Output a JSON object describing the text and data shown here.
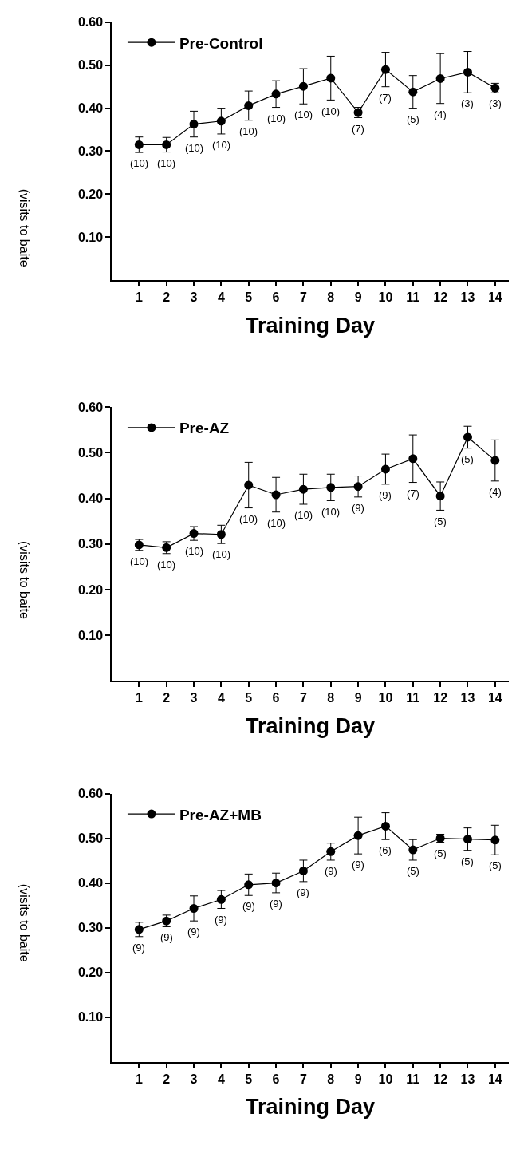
{
  "chart_data": [
    {
      "type": "line",
      "xlabel": "Training Day",
      "ylabel": "(visits to baite",
      "x": [
        1,
        2,
        3,
        4,
        5,
        6,
        7,
        8,
        9,
        10,
        11,
        12,
        13,
        14
      ],
      "series": [
        {
          "name": "Pre-Control",
          "color": "#000000",
          "values": [
            0.315,
            0.315,
            0.363,
            0.37,
            0.406,
            0.433,
            0.451,
            0.47,
            0.39,
            0.49,
            0.438,
            0.469,
            0.484,
            0.447
          ],
          "errors": [
            0.018,
            0.017,
            0.03,
            0.03,
            0.034,
            0.031,
            0.041,
            0.051,
            0.012,
            0.04,
            0.038,
            0.058,
            0.048,
            0.011
          ]
        }
      ],
      "annotations": [
        {
          "text": "(10)",
          "x": 1,
          "y": 0.315
        },
        {
          "text": "(10)",
          "x": 2,
          "y": 0.315
        },
        {
          "text": "(10)",
          "x": 3,
          "y": 0.363
        },
        {
          "text": "(10)",
          "x": 4,
          "y": 0.37
        },
        {
          "text": "(10)",
          "x": 5,
          "y": 0.406
        },
        {
          "text": "(10)",
          "x": 6,
          "y": 0.433
        },
        {
          "text": "(10)",
          "x": 7,
          "y": 0.451
        },
        {
          "text": "(10)",
          "x": 8,
          "y": 0.47
        },
        {
          "text": "(7)",
          "x": 9,
          "y": 0.39
        },
        {
          "text": "(7)",
          "x": 10,
          "y": 0.49
        },
        {
          "text": "(5)",
          "x": 11,
          "y": 0.438
        },
        {
          "text": "(4)",
          "x": 12,
          "y": 0.469
        },
        {
          "text": "(3)",
          "x": 13,
          "y": 0.484
        },
        {
          "text": "(3)",
          "x": 14,
          "y": 0.447
        }
      ],
      "xlim": [
        0,
        14.5
      ],
      "xticks": [
        1,
        2,
        3,
        4,
        5,
        6,
        7,
        8,
        9,
        10,
        11,
        12,
        13,
        14
      ],
      "ylim": [
        0,
        0.6
      ],
      "yticks": [
        {
          "value": 0.1,
          "label": "0.10"
        },
        {
          "value": 0.2,
          "label": "0.20"
        },
        {
          "value": 0.3,
          "label": "0.30"
        },
        {
          "value": 0.4,
          "label": "0.40"
        },
        {
          "value": 0.5,
          "label": "0.50"
        },
        {
          "value": 0.6,
          "label": "0.60"
        }
      ],
      "legend": "top left",
      "marker": "circle",
      "line_style": "solid"
    },
    {
      "type": "line",
      "xlabel": "Training Day",
      "ylabel": "(visits to baite",
      "x": [
        1,
        2,
        3,
        4,
        5,
        6,
        7,
        8,
        9,
        10,
        11,
        12,
        13,
        14
      ],
      "series": [
        {
          "name": "Pre-AZ",
          "color": "#000000",
          "values": [
            0.298,
            0.292,
            0.323,
            0.321,
            0.429,
            0.408,
            0.42,
            0.424,
            0.426,
            0.464,
            0.487,
            0.405,
            0.534,
            0.483
          ],
          "errors": [
            0.012,
            0.013,
            0.015,
            0.02,
            0.05,
            0.038,
            0.033,
            0.029,
            0.023,
            0.033,
            0.052,
            0.031,
            0.024,
            0.045
          ]
        }
      ],
      "annotations": [
        {
          "text": "(10)",
          "x": 1,
          "y": 0.298
        },
        {
          "text": "(10)",
          "x": 2,
          "y": 0.292
        },
        {
          "text": "(10)",
          "x": 3,
          "y": 0.323
        },
        {
          "text": "(10)",
          "x": 4,
          "y": 0.321
        },
        {
          "text": "(10)",
          "x": 5,
          "y": 0.429
        },
        {
          "text": "(10)",
          "x": 6,
          "y": 0.408
        },
        {
          "text": "(10)",
          "x": 7,
          "y": 0.42
        },
        {
          "text": "(10)",
          "x": 8,
          "y": 0.424
        },
        {
          "text": "(9)",
          "x": 9,
          "y": 0.426
        },
        {
          "text": "(9)",
          "x": 10,
          "y": 0.464
        },
        {
          "text": "(7)",
          "x": 11,
          "y": 0.487
        },
        {
          "text": "(5)",
          "x": 12,
          "y": 0.405
        },
        {
          "text": "(5)",
          "x": 13,
          "y": 0.534
        },
        {
          "text": "(4)",
          "x": 14,
          "y": 0.483
        }
      ],
      "xlim": [
        0,
        14.5
      ],
      "xticks": [
        1,
        2,
        3,
        4,
        5,
        6,
        7,
        8,
        9,
        10,
        11,
        12,
        13,
        14
      ],
      "ylim": [
        0,
        0.6
      ],
      "yticks": [
        {
          "value": 0.1,
          "label": "0.10"
        },
        {
          "value": 0.2,
          "label": "0.20"
        },
        {
          "value": 0.3,
          "label": "0.30"
        },
        {
          "value": 0.4,
          "label": "0.40"
        },
        {
          "value": 0.5,
          "label": "0.50"
        },
        {
          "value": 0.6,
          "label": "0.60"
        }
      ],
      "legend": "top left",
      "marker": "circle",
      "line_style": "solid"
    },
    {
      "type": "line",
      "xlabel": "Training Day",
      "ylabel": "(visits to baite",
      "x": [
        1,
        2,
        3,
        4,
        5,
        6,
        7,
        8,
        9,
        10,
        11,
        12,
        13,
        14
      ],
      "series": [
        {
          "name": "Pre-AZ+MB",
          "color": "#000000",
          "values": [
            0.296,
            0.315,
            0.343,
            0.363,
            0.396,
            0.4,
            0.427,
            0.47,
            0.506,
            0.527,
            0.474,
            0.5,
            0.498,
            0.496
          ],
          "errors": [
            0.016,
            0.013,
            0.028,
            0.02,
            0.024,
            0.022,
            0.024,
            0.019,
            0.041,
            0.03,
            0.023,
            0.009,
            0.025,
            0.033
          ]
        }
      ],
      "annotations": [
        {
          "text": "(9)",
          "x": 1,
          "y": 0.296
        },
        {
          "text": "(9)",
          "x": 2,
          "y": 0.315
        },
        {
          "text": "(9)",
          "x": 3,
          "y": 0.343
        },
        {
          "text": "(9)",
          "x": 4,
          "y": 0.363
        },
        {
          "text": "(9)",
          "x": 5,
          "y": 0.396
        },
        {
          "text": "(9)",
          "x": 6,
          "y": 0.4
        },
        {
          "text": "(9)",
          "x": 7,
          "y": 0.427
        },
        {
          "text": "(9)",
          "x": 8,
          "y": 0.47
        },
        {
          "text": "(9)",
          "x": 9,
          "y": 0.506
        },
        {
          "text": "(6)",
          "x": 10,
          "y": 0.527
        },
        {
          "text": "(5)",
          "x": 11,
          "y": 0.474
        },
        {
          "text": "(5)",
          "x": 12,
          "y": 0.5
        },
        {
          "text": "(5)",
          "x": 13,
          "y": 0.498
        },
        {
          "text": "(5)",
          "x": 14,
          "y": 0.496
        }
      ],
      "xlim": [
        0,
        14.5
      ],
      "xticks": [
        1,
        2,
        3,
        4,
        5,
        6,
        7,
        8,
        9,
        10,
        11,
        12,
        13,
        14
      ],
      "ylim": [
        0,
        0.6
      ],
      "yticks": [
        {
          "value": 0.1,
          "label": "0.10"
        },
        {
          "value": 0.2,
          "label": "0.20"
        },
        {
          "value": 0.3,
          "label": "0.30"
        },
        {
          "value": 0.4,
          "label": "0.40"
        },
        {
          "value": 0.5,
          "label": "0.50"
        },
        {
          "value": 0.6,
          "label": "0.60"
        }
      ],
      "legend": "top left",
      "marker": "circle",
      "line_style": "solid"
    }
  ]
}
